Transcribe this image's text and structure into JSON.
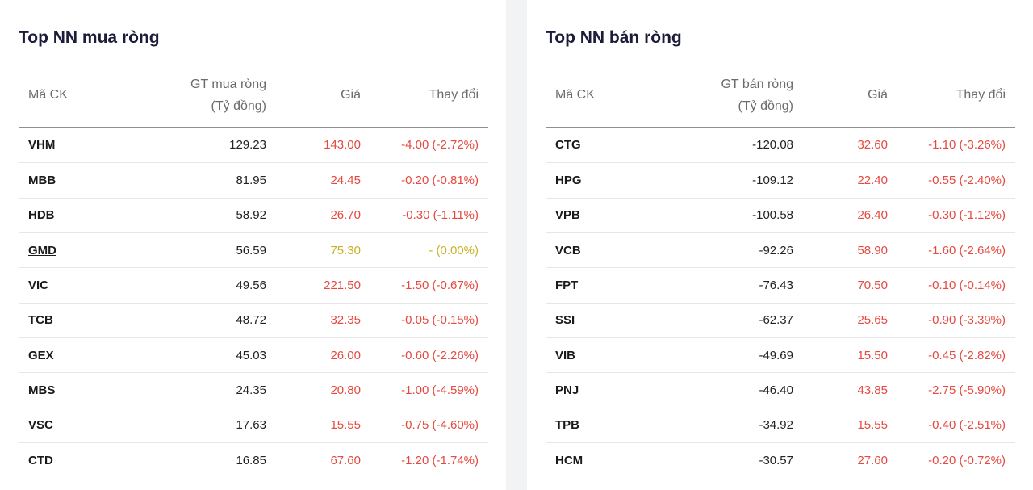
{
  "buy": {
    "title": "Top NN mua ròng",
    "headers": {
      "symbol": "Mã CK",
      "value_line1": "GT mua ròng",
      "value_line2": "(Tỷ đồng)",
      "price": "Giá",
      "change": "Thay đổi"
    },
    "rows": [
      {
        "symbol": "VHM",
        "value": "129.23",
        "price": "143.00",
        "change": "-4.00 (-2.72%)",
        "color": "#e5493f"
      },
      {
        "symbol": "MBB",
        "value": "81.95",
        "price": "24.45",
        "change": "-0.20 (-0.81%)",
        "color": "#e5493f"
      },
      {
        "symbol": "HDB",
        "value": "58.92",
        "price": "26.70",
        "change": "-0.30 (-1.11%)",
        "color": "#e5493f"
      },
      {
        "symbol": "GMD",
        "value": "56.59",
        "price": "75.30",
        "change": "- (0.00%)",
        "color": "#c9b227",
        "underline": true
      },
      {
        "symbol": "VIC",
        "value": "49.56",
        "price": "221.50",
        "change": "-1.50 (-0.67%)",
        "color": "#e5493f"
      },
      {
        "symbol": "TCB",
        "value": "48.72",
        "price": "32.35",
        "change": "-0.05 (-0.15%)",
        "color": "#e5493f"
      },
      {
        "symbol": "GEX",
        "value": "45.03",
        "price": "26.00",
        "change": "-0.60 (-2.26%)",
        "color": "#e5493f"
      },
      {
        "symbol": "MBS",
        "value": "24.35",
        "price": "20.80",
        "change": "-1.00 (-4.59%)",
        "color": "#e5493f"
      },
      {
        "symbol": "VSC",
        "value": "17.63",
        "price": "15.55",
        "change": "-0.75 (-4.60%)",
        "color": "#e5493f"
      },
      {
        "symbol": "CTD",
        "value": "16.85",
        "price": "67.60",
        "change": "-1.20 (-1.74%)",
        "color": "#e5493f"
      }
    ]
  },
  "sell": {
    "title": "Top NN bán ròng",
    "headers": {
      "symbol": "Mã CK",
      "value_line1": "GT bán ròng",
      "value_line2": "(Tỷ đồng)",
      "price": "Giá",
      "change": "Thay đổi"
    },
    "rows": [
      {
        "symbol": "CTG",
        "value": "-120.08",
        "price": "32.60",
        "change": "-1.10 (-3.26%)",
        "color": "#e5493f"
      },
      {
        "symbol": "HPG",
        "value": "-109.12",
        "price": "22.40",
        "change": "-0.55 (-2.40%)",
        "color": "#e5493f"
      },
      {
        "symbol": "VPB",
        "value": "-100.58",
        "price": "26.40",
        "change": "-0.30 (-1.12%)",
        "color": "#e5493f"
      },
      {
        "symbol": "VCB",
        "value": "-92.26",
        "price": "58.90",
        "change": "-1.60 (-2.64%)",
        "color": "#e5493f"
      },
      {
        "symbol": "FPT",
        "value": "-76.43",
        "price": "70.50",
        "change": "-0.10 (-0.14%)",
        "color": "#e5493f"
      },
      {
        "symbol": "SSI",
        "value": "-62.37",
        "price": "25.65",
        "change": "-0.90 (-3.39%)",
        "color": "#e5493f"
      },
      {
        "symbol": "VIB",
        "value": "-49.69",
        "price": "15.50",
        "change": "-0.45 (-2.82%)",
        "color": "#e5493f"
      },
      {
        "symbol": "PNJ",
        "value": "-46.40",
        "price": "43.85",
        "change": "-2.75 (-5.90%)",
        "color": "#e5493f"
      },
      {
        "symbol": "TPB",
        "value": "-34.92",
        "price": "15.55",
        "change": "-0.40 (-2.51%)",
        "color": "#e5493f"
      },
      {
        "symbol": "HCM",
        "value": "-30.57",
        "price": "27.60",
        "change": "-0.20 (-0.72%)",
        "color": "#e5493f"
      }
    ]
  }
}
